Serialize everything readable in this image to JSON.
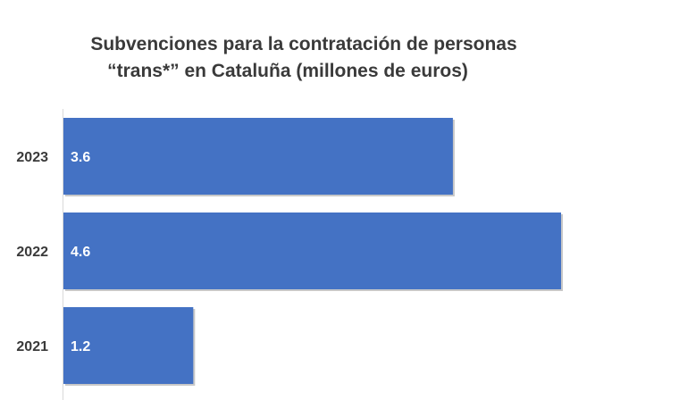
{
  "chart_data": {
    "type": "bar",
    "orientation": "horizontal",
    "title_lines": [
      "Subvenciones para la contratación de personas",
      "“trans*” en Cataluña (millones de euros)"
    ],
    "categories": [
      "2023",
      "2022",
      "2021"
    ],
    "values": [
      3.6,
      4.6,
      1.2
    ],
    "data_labels": [
      "3.6",
      "4.6",
      "1.2"
    ],
    "xlabel": "",
    "ylabel": "",
    "xlim": [
      0,
      4.6
    ],
    "grid": false,
    "legend": "none",
    "bar_color": "#4472c4",
    "bar_shadow_color": "#9a9a9a",
    "axis_line_color": "#d9d9d9",
    "text_color": "#3a3a3a"
  }
}
